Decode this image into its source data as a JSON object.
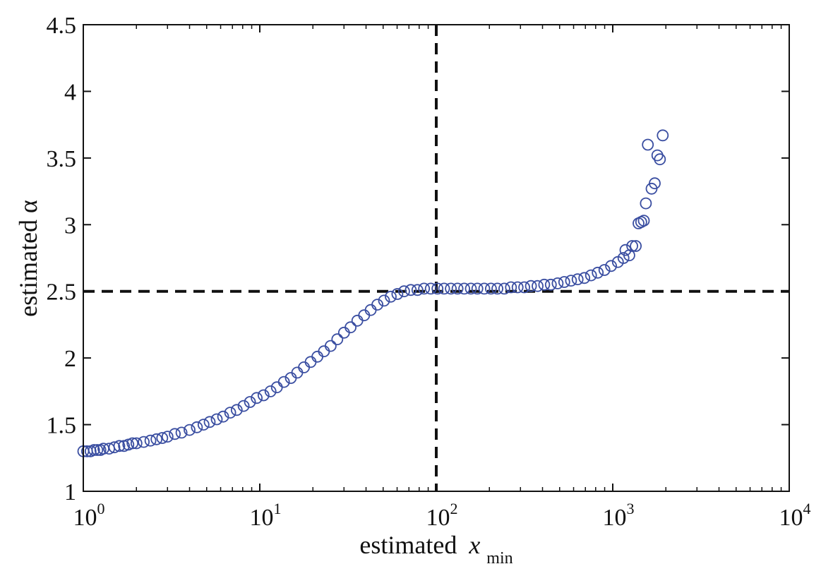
{
  "chart_data": {
    "type": "scatter",
    "title": "",
    "xlabel": {
      "main": "estimated",
      "var": "x",
      "sub": "min"
    },
    "ylabel": "estimated α",
    "xscale": "log",
    "xlim": [
      1,
      10000
    ],
    "ylim": [
      1,
      4.5
    ],
    "grid": false,
    "legend": "none",
    "marker": "open-circle",
    "colors": {
      "marker": "#3a4ea1",
      "reference": "#111111",
      "axes": "#111111"
    },
    "xticks": [
      {
        "value": 1,
        "base": "10",
        "exp": "0"
      },
      {
        "value": 10,
        "base": "10",
        "exp": "1"
      },
      {
        "value": 100,
        "base": "10",
        "exp": "2"
      },
      {
        "value": 1000,
        "base": "10",
        "exp": "3"
      },
      {
        "value": 10000,
        "base": "10",
        "exp": "4"
      }
    ],
    "yticks": [
      {
        "value": 1,
        "label": "1"
      },
      {
        "value": 1.5,
        "label": "1.5"
      },
      {
        "value": 2,
        "label": "2"
      },
      {
        "value": 2.5,
        "label": "2.5"
      },
      {
        "value": 3,
        "label": "3"
      },
      {
        "value": 3.5,
        "label": "3.5"
      },
      {
        "value": 4,
        "label": "4"
      },
      {
        "value": 4.5,
        "label": "4.5"
      }
    ],
    "reference_lines": {
      "x": 100,
      "y": 2.5,
      "style": "dashed"
    },
    "points": [
      {
        "x": 1.0,
        "y": 1.3
      },
      {
        "x": 1.05,
        "y": 1.3
      },
      {
        "x": 1.1,
        "y": 1.3
      },
      {
        "x": 1.15,
        "y": 1.31
      },
      {
        "x": 1.2,
        "y": 1.31
      },
      {
        "x": 1.25,
        "y": 1.31
      },
      {
        "x": 1.3,
        "y": 1.32
      },
      {
        "x": 1.4,
        "y": 1.32
      },
      {
        "x": 1.5,
        "y": 1.33
      },
      {
        "x": 1.6,
        "y": 1.34
      },
      {
        "x": 1.7,
        "y": 1.34
      },
      {
        "x": 1.8,
        "y": 1.35
      },
      {
        "x": 1.9,
        "y": 1.36
      },
      {
        "x": 2.0,
        "y": 1.36
      },
      {
        "x": 2.2,
        "y": 1.37
      },
      {
        "x": 2.4,
        "y": 1.38
      },
      {
        "x": 2.6,
        "y": 1.39
      },
      {
        "x": 2.8,
        "y": 1.4
      },
      {
        "x": 3.0,
        "y": 1.41
      },
      {
        "x": 3.3,
        "y": 1.43
      },
      {
        "x": 3.6,
        "y": 1.44
      },
      {
        "x": 4.0,
        "y": 1.46
      },
      {
        "x": 4.4,
        "y": 1.48
      },
      {
        "x": 4.8,
        "y": 1.5
      },
      {
        "x": 5.2,
        "y": 1.52
      },
      {
        "x": 5.7,
        "y": 1.54
      },
      {
        "x": 6.2,
        "y": 1.56
      },
      {
        "x": 6.8,
        "y": 1.59
      },
      {
        "x": 7.4,
        "y": 1.61
      },
      {
        "x": 8.1,
        "y": 1.64
      },
      {
        "x": 8.8,
        "y": 1.67
      },
      {
        "x": 9.6,
        "y": 1.7
      },
      {
        "x": 10.5,
        "y": 1.72
      },
      {
        "x": 11.5,
        "y": 1.75
      },
      {
        "x": 12.5,
        "y": 1.78
      },
      {
        "x": 13.7,
        "y": 1.82
      },
      {
        "x": 15.0,
        "y": 1.85
      },
      {
        "x": 16.3,
        "y": 1.89
      },
      {
        "x": 17.8,
        "y": 1.93
      },
      {
        "x": 19.4,
        "y": 1.97
      },
      {
        "x": 21.2,
        "y": 2.01
      },
      {
        "x": 23.1,
        "y": 2.05
      },
      {
        "x": 25.2,
        "y": 2.09
      },
      {
        "x": 27.5,
        "y": 2.14
      },
      {
        "x": 30.0,
        "y": 2.19
      },
      {
        "x": 32.7,
        "y": 2.23
      },
      {
        "x": 35.7,
        "y": 2.28
      },
      {
        "x": 39.0,
        "y": 2.32
      },
      {
        "x": 42.5,
        "y": 2.36
      },
      {
        "x": 46.4,
        "y": 2.4
      },
      {
        "x": 50.6,
        "y": 2.43
      },
      {
        "x": 55.2,
        "y": 2.46
      },
      {
        "x": 60.2,
        "y": 2.48
      },
      {
        "x": 65.7,
        "y": 2.5
      },
      {
        "x": 71.7,
        "y": 2.51
      },
      {
        "x": 78.2,
        "y": 2.51
      },
      {
        "x": 85.3,
        "y": 2.52
      },
      {
        "x": 93.1,
        "y": 2.52
      },
      {
        "x": 101.6,
        "y": 2.52
      },
      {
        "x": 110.8,
        "y": 2.52
      },
      {
        "x": 120.9,
        "y": 2.52
      },
      {
        "x": 132.0,
        "y": 2.52
      },
      {
        "x": 144.0,
        "y": 2.52
      },
      {
        "x": 157.0,
        "y": 2.52
      },
      {
        "x": 171.0,
        "y": 2.52
      },
      {
        "x": 187.0,
        "y": 2.52
      },
      {
        "x": 204.0,
        "y": 2.52
      },
      {
        "x": 222.0,
        "y": 2.52
      },
      {
        "x": 243.0,
        "y": 2.52
      },
      {
        "x": 265.0,
        "y": 2.53
      },
      {
        "x": 289.0,
        "y": 2.53
      },
      {
        "x": 315.0,
        "y": 2.53
      },
      {
        "x": 344.0,
        "y": 2.54
      },
      {
        "x": 375.0,
        "y": 2.54
      },
      {
        "x": 409.0,
        "y": 2.55
      },
      {
        "x": 446.0,
        "y": 2.55
      },
      {
        "x": 487.0,
        "y": 2.56
      },
      {
        "x": 531.0,
        "y": 2.57
      },
      {
        "x": 580.0,
        "y": 2.58
      },
      {
        "x": 632.0,
        "y": 2.59
      },
      {
        "x": 690.0,
        "y": 2.6
      },
      {
        "x": 753.0,
        "y": 2.62
      },
      {
        "x": 822.0,
        "y": 2.64
      },
      {
        "x": 897.0,
        "y": 2.66
      },
      {
        "x": 978.0,
        "y": 2.69
      },
      {
        "x": 1070.0,
        "y": 2.72
      },
      {
        "x": 1150.0,
        "y": 2.75
      },
      {
        "x": 1180.0,
        "y": 2.81
      },
      {
        "x": 1240.0,
        "y": 2.77
      },
      {
        "x": 1290.0,
        "y": 2.84
      },
      {
        "x": 1350.0,
        "y": 2.84
      },
      {
        "x": 1400.0,
        "y": 3.01
      },
      {
        "x": 1450.0,
        "y": 3.02
      },
      {
        "x": 1500.0,
        "y": 3.03
      },
      {
        "x": 1540.0,
        "y": 3.16
      },
      {
        "x": 1580.0,
        "y": 3.6
      },
      {
        "x": 1660.0,
        "y": 3.27
      },
      {
        "x": 1730.0,
        "y": 3.31
      },
      {
        "x": 1790.0,
        "y": 3.52
      },
      {
        "x": 1850.0,
        "y": 3.49
      },
      {
        "x": 1920.0,
        "y": 3.67
      }
    ]
  }
}
